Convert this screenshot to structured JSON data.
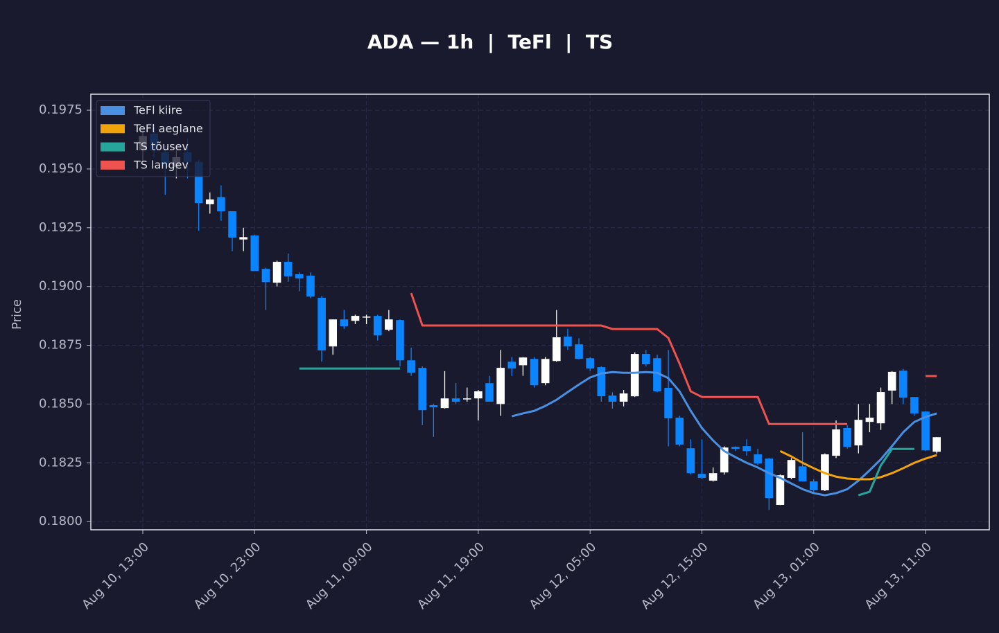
{
  "chart_data": {
    "type": "candlestick",
    "title": "ADA — 1h  |  TeFl  |  TS",
    "ylabel": "Price",
    "x": [
      "Aug 10, 13:00",
      "Aug 10, 14:00",
      "Aug 10, 15:00",
      "Aug 10, 16:00",
      "Aug 10, 17:00",
      "Aug 10, 18:00",
      "Aug 10, 19:00",
      "Aug 10, 20:00",
      "Aug 10, 21:00",
      "Aug 10, 22:00",
      "Aug 10, 23:00",
      "Aug 11, 00:00",
      "Aug 11, 01:00",
      "Aug 11, 02:00",
      "Aug 11, 03:00",
      "Aug 11, 04:00",
      "Aug 11, 05:00",
      "Aug 11, 06:00",
      "Aug 11, 07:00",
      "Aug 11, 08:00",
      "Aug 11, 09:00",
      "Aug 11, 10:00",
      "Aug 11, 11:00",
      "Aug 11, 12:00",
      "Aug 11, 13:00",
      "Aug 11, 14:00",
      "Aug 11, 15:00",
      "Aug 11, 16:00",
      "Aug 11, 17:00",
      "Aug 11, 18:00",
      "Aug 11, 19:00",
      "Aug 11, 20:00",
      "Aug 11, 21:00",
      "Aug 11, 22:00",
      "Aug 11, 23:00",
      "Aug 12, 00:00",
      "Aug 12, 01:00",
      "Aug 12, 02:00",
      "Aug 12, 03:00",
      "Aug 12, 04:00",
      "Aug 12, 05:00",
      "Aug 12, 06:00",
      "Aug 12, 07:00",
      "Aug 12, 08:00",
      "Aug 12, 09:00",
      "Aug 12, 10:00",
      "Aug 12, 11:00",
      "Aug 12, 12:00",
      "Aug 12, 13:00",
      "Aug 12, 14:00",
      "Aug 12, 15:00",
      "Aug 12, 16:00",
      "Aug 12, 17:00",
      "Aug 12, 18:00",
      "Aug 12, 19:00",
      "Aug 12, 20:00",
      "Aug 12, 21:00",
      "Aug 12, 22:00",
      "Aug 12, 23:00",
      "Aug 13, 00:00",
      "Aug 13, 01:00",
      "Aug 13, 02:00",
      "Aug 13, 03:00",
      "Aug 13, 04:00",
      "Aug 13, 05:00",
      "Aug 13, 06:00",
      "Aug 13, 07:00",
      "Aug 13, 08:00",
      "Aug 13, 09:00",
      "Aug 13, 10:00",
      "Aug 13, 11:00",
      "Aug 13, 12:00"
    ],
    "open": [
      0.1958,
      0.1965,
      0.1957,
      0.1951,
      0.1957,
      0.1953,
      0.1935,
      0.1938,
      0.1932,
      0.192,
      0.19217,
      0.19075,
      0.19016,
      0.19105,
      0.19052,
      0.19046,
      0.18952,
      0.18745,
      0.1886,
      0.18854,
      0.18868,
      0.18875,
      0.18816,
      0.18857,
      0.18686,
      0.18654,
      0.18495,
      0.18483,
      0.18524,
      0.1852,
      0.18524,
      0.18589,
      0.185,
      0.1868,
      0.18665,
      0.18692,
      0.18589,
      0.18683,
      0.18787,
      0.18754,
      0.18695,
      0.18657,
      0.18536,
      0.1851,
      0.18533,
      0.18713,
      0.18695,
      0.18569,
      0.18442,
      0.18312,
      0.18203,
      0.18174,
      0.18209,
      0.18318,
      0.18321,
      0.18286,
      0.18268,
      0.18071,
      0.18186,
      0.18235,
      0.18171,
      0.18133,
      0.1828,
      0.18398,
      0.18324,
      0.18424,
      0.18418,
      0.18557,
      0.18642,
      0.1853,
      0.18468,
      0.18297
    ],
    "high": [
      0.1966,
      0.1968,
      0.196,
      0.1958,
      0.1963,
      0.1954,
      0.194,
      0.1943,
      0.1932,
      0.1925,
      0.1922,
      0.1908,
      0.1911,
      0.1914,
      0.1906,
      0.1906,
      0.1896,
      0.1886,
      0.189,
      0.1888,
      0.1888,
      0.1888,
      0.189,
      0.1886,
      0.1874,
      0.1866,
      0.185,
      0.1864,
      0.1859,
      0.1857,
      0.1856,
      0.1862,
      0.1873,
      0.187,
      0.187,
      0.187,
      0.187,
      0.189,
      0.1882,
      0.1878,
      0.187,
      0.1866,
      0.1855,
      0.1856,
      0.1872,
      0.1873,
      0.1871,
      0.1873,
      0.1845,
      0.1835,
      0.1835,
      0.1823,
      0.1832,
      0.1832,
      0.1835,
      0.1831,
      0.1827,
      0.182,
      0.1827,
      0.1838,
      0.1818,
      0.1829,
      0.1843,
      0.1841,
      0.185,
      0.185,
      0.1857,
      0.1864,
      0.1865,
      0.1853,
      0.1847,
      0.1836
    ],
    "low": [
      0.1953,
      0.1955,
      0.1939,
      0.1946,
      0.1946,
      0.19237,
      0.1931,
      0.1928,
      0.1915,
      0.1915,
      0.19066,
      0.189,
      0.19,
      0.1902,
      0.1898,
      0.1895,
      0.1868,
      0.1871,
      0.1882,
      0.1884,
      0.1884,
      0.1877,
      0.1881,
      0.1866,
      0.1862,
      0.1841,
      0.1836,
      0.1848,
      0.185,
      0.1851,
      0.1843,
      0.1851,
      0.1845,
      0.1862,
      0.1862,
      0.1857,
      0.1858,
      0.1868,
      0.1873,
      0.1869,
      0.1864,
      0.1851,
      0.1848,
      0.1849,
      0.1853,
      0.1866,
      0.1855,
      0.1832,
      0.1832,
      0.182,
      0.1818,
      0.1817,
      0.182,
      0.183,
      0.1828,
      0.1824,
      0.1805,
      0.1807,
      0.1818,
      0.1817,
      0.1812,
      0.1813,
      0.1827,
      0.1831,
      0.1829,
      0.1838,
      0.1839,
      0.185,
      0.185,
      0.1845,
      0.183,
      0.1829
    ],
    "close": [
      0.1964,
      0.1958,
      0.1952,
      0.1955,
      0.1953,
      0.19355,
      0.1937,
      0.1932,
      0.19208,
      0.1921,
      0.19066,
      0.19019,
      0.19105,
      0.19043,
      0.19034,
      0.18957,
      0.18728,
      0.1886,
      0.18831,
      0.18875,
      0.18872,
      0.18792,
      0.1886,
      0.18686,
      0.18633,
      0.18474,
      0.18486,
      0.18524,
      0.1851,
      0.18524,
      0.18554,
      0.1851,
      0.18654,
      0.18651,
      0.18698,
      0.1858,
      0.18692,
      0.18784,
      0.18745,
      0.18692,
      0.18651,
      0.18533,
      0.1851,
      0.18545,
      0.18713,
      0.18669,
      0.18554,
      0.18439,
      0.18327,
      0.18206,
      0.18186,
      0.18206,
      0.18315,
      0.18309,
      0.183,
      0.18247,
      0.181,
      0.18197,
      0.18262,
      0.18171,
      0.18133,
      0.18286,
      0.18392,
      0.18318,
      0.18433,
      0.18442,
      0.18551,
      0.18637,
      0.18527,
      0.1846,
      0.18303,
      0.18359
    ],
    "up_color": "#ffffff",
    "down_color": "#0a84ff",
    "series": [
      {
        "name": "TeFl kiire",
        "color": "#4a90e2",
        "values": [
          null,
          null,
          null,
          null,
          null,
          null,
          null,
          null,
          null,
          null,
          null,
          null,
          null,
          null,
          null,
          null,
          null,
          null,
          null,
          null,
          null,
          null,
          null,
          null,
          null,
          null,
          null,
          null,
          null,
          null,
          null,
          null,
          null,
          0.18448,
          0.1846,
          0.18471,
          0.18492,
          0.18518,
          0.18551,
          0.18583,
          0.18613,
          0.1863,
          0.18636,
          0.18633,
          0.18633,
          0.18636,
          0.18633,
          0.1861,
          0.18554,
          0.18471,
          0.18398,
          0.18345,
          0.183,
          0.18274,
          0.1825,
          0.1823,
          0.18206,
          0.18186,
          0.18162,
          0.18138,
          0.18121,
          0.18112,
          0.18121,
          0.18138,
          0.18174,
          0.18218,
          0.18265,
          0.18321,
          0.1838,
          0.18424,
          0.18445,
          0.1846
        ]
      },
      {
        "name": "TeFl aeglane",
        "color": "#f0a30a",
        "values": [
          null,
          null,
          null,
          null,
          null,
          null,
          null,
          null,
          null,
          null,
          null,
          null,
          null,
          null,
          null,
          null,
          null,
          null,
          null,
          null,
          null,
          null,
          null,
          null,
          null,
          null,
          null,
          null,
          null,
          null,
          null,
          null,
          null,
          null,
          null,
          null,
          null,
          null,
          null,
          null,
          null,
          null,
          null,
          null,
          null,
          null,
          null,
          null,
          null,
          null,
          null,
          null,
          null,
          null,
          null,
          null,
          null,
          0.183,
          0.18277,
          0.1825,
          0.18227,
          0.18206,
          0.18191,
          0.18183,
          0.1818,
          0.1818,
          0.18189,
          0.18206,
          0.18227,
          0.1825,
          0.18268,
          0.18283
        ]
      },
      {
        "name": "TS tõusev",
        "color": "#26a69a",
        "values": [
          null,
          null,
          null,
          null,
          null,
          null,
          null,
          null,
          null,
          null,
          null,
          null,
          null,
          null,
          0.18651,
          0.18651,
          0.18651,
          0.18651,
          0.18651,
          0.18651,
          0.18651,
          0.18651,
          0.18651,
          0.18651,
          null,
          null,
          null,
          null,
          null,
          null,
          null,
          null,
          null,
          null,
          null,
          null,
          null,
          null,
          null,
          null,
          null,
          null,
          null,
          null,
          null,
          null,
          null,
          null,
          null,
          null,
          null,
          null,
          null,
          null,
          null,
          null,
          null,
          null,
          null,
          null,
          null,
          null,
          null,
          null,
          0.18112,
          0.18127,
          0.18239,
          0.18309,
          0.18309,
          0.18309,
          null,
          null
        ]
      },
      {
        "name": "TS langev",
        "color": "#ef5350",
        "values": [
          null,
          null,
          null,
          null,
          null,
          null,
          null,
          null,
          null,
          null,
          null,
          null,
          null,
          null,
          null,
          null,
          null,
          null,
          null,
          null,
          null,
          null,
          null,
          null,
          0.18972,
          0.18834,
          0.18834,
          0.18834,
          0.18834,
          0.18834,
          0.18834,
          0.18834,
          0.18834,
          0.18834,
          0.18834,
          0.18834,
          0.18834,
          0.18834,
          0.18834,
          0.18834,
          0.18834,
          0.18834,
          0.18819,
          0.18819,
          0.18819,
          0.18819,
          0.18819,
          0.18781,
          0.18672,
          0.18554,
          0.1853,
          0.1853,
          0.1853,
          0.1853,
          0.1853,
          0.1853,
          0.18415,
          0.18415,
          0.18415,
          0.18415,
          0.18415,
          0.18415,
          0.18415,
          0.18415,
          null,
          null,
          null,
          null,
          null,
          null,
          0.18619,
          0.18619
        ]
      }
    ],
    "xticks": [
      "Aug 10, 13:00",
      "Aug 10, 23:00",
      "Aug 11, 09:00",
      "Aug 11, 19:00",
      "Aug 12, 05:00",
      "Aug 12, 15:00",
      "Aug 13, 01:00",
      "Aug 13, 11:00"
    ],
    "xlim": [
      -4.65,
      75.7
    ],
    "ylim": [
      0.17965,
      0.19818
    ],
    "yticks": [
      {
        "value": 0.18,
        "label": "0.1800"
      },
      {
        "value": 0.1825,
        "label": "0.1825"
      },
      {
        "value": 0.185,
        "label": "0.1850"
      },
      {
        "value": 0.1875,
        "label": "0.1875"
      },
      {
        "value": 0.19,
        "label": "0.1900"
      },
      {
        "value": 0.1925,
        "label": "0.1925"
      },
      {
        "value": 0.195,
        "label": "0.1950"
      },
      {
        "value": 0.1975,
        "label": "0.1975"
      }
    ],
    "grid": true,
    "legend": "upper left"
  }
}
